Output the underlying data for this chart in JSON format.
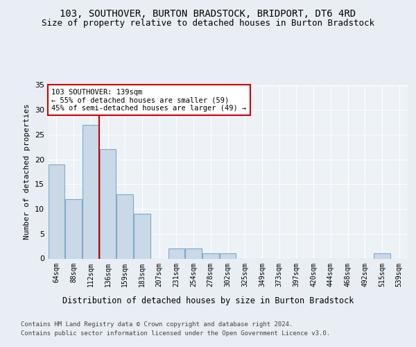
{
  "title_line1": "103, SOUTHOVER, BURTON BRADSTOCK, BRIDPORT, DT6 4RD",
  "title_line2": "Size of property relative to detached houses in Burton Bradstock",
  "xlabel": "Distribution of detached houses by size in Burton Bradstock",
  "ylabel": "Number of detached properties",
  "footer_line1": "Contains HM Land Registry data © Crown copyright and database right 2024.",
  "footer_line2": "Contains public sector information licensed under the Open Government Licence v3.0.",
  "bin_labels": [
    "64sqm",
    "88sqm",
    "112sqm",
    "136sqm",
    "159sqm",
    "183sqm",
    "207sqm",
    "231sqm",
    "254sqm",
    "278sqm",
    "302sqm",
    "325sqm",
    "349sqm",
    "373sqm",
    "397sqm",
    "420sqm",
    "444sqm",
    "468sqm",
    "492sqm",
    "515sqm",
    "539sqm"
  ],
  "bar_values": [
    19,
    12,
    27,
    22,
    13,
    9,
    0,
    2,
    2,
    1,
    1,
    0,
    0,
    0,
    0,
    0,
    0,
    0,
    0,
    1,
    0
  ],
  "bar_color": "#c9d9e8",
  "bar_edgecolor": "#7fa8c9",
  "annotation_text": "103 SOUTHOVER: 139sqm\n← 55% of detached houses are smaller (59)\n45% of semi-detached houses are larger (49) →",
  "annotation_box_edgecolor": "#cc0000",
  "vline_index": 3,
  "vline_color": "#cc0000",
  "ylim": [
    0,
    35
  ],
  "yticks": [
    0,
    5,
    10,
    15,
    20,
    25,
    30,
    35
  ],
  "bg_color": "#e8eef4",
  "plot_bg_color": "#edf2f7",
  "grid_color": "#ffffff",
  "title_fontsize": 10,
  "subtitle_fontsize": 9
}
